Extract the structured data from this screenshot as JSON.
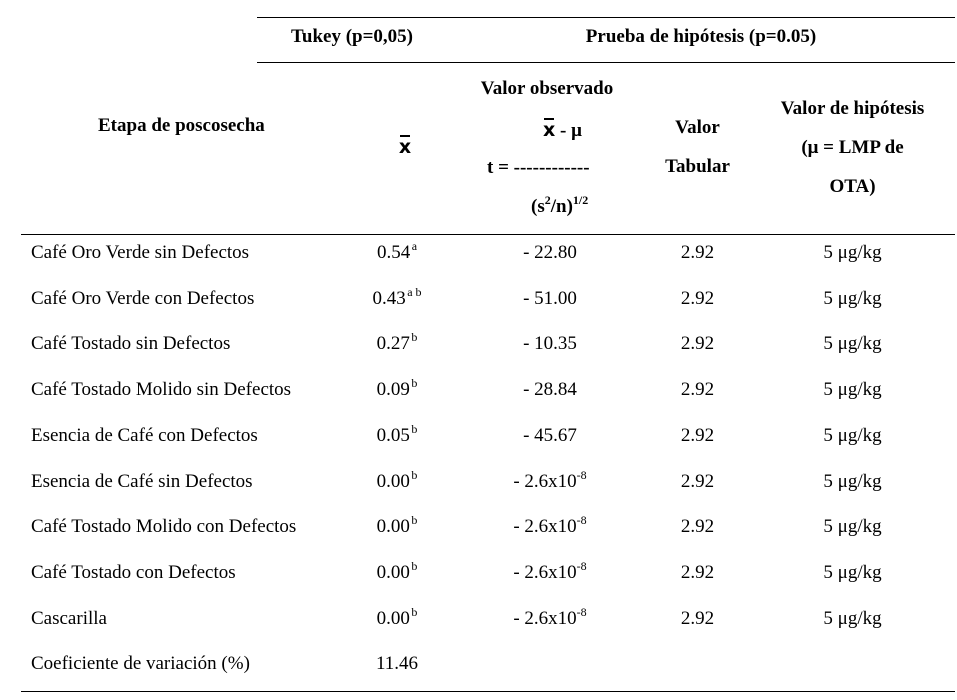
{
  "header": {
    "tukey": "Tukey (p=0,05)",
    "prueba": "Prueba de hipótesis (p=0.05)",
    "etapa": "Etapa de poscosecha",
    "xbar_symbol": "x",
    "valor_observado": "Valor observado",
    "formula_numer_x": "x",
    "formula_numer_rest": " - μ",
    "formula_t": "t = ------------",
    "formula_den_open": "(s",
    "formula_den_exp1": "2",
    "formula_den_mid": "/n)",
    "formula_den_exp2": "1/2",
    "valor_tabular_1": "Valor",
    "valor_tabular_2": "Tabular",
    "valor_hip_1": "Valor de hipótesis",
    "valor_hip_2": "(μ = LMP de",
    "valor_hip_3": "OTA)"
  },
  "rows": [
    {
      "etapa": "Café Oro Verde sin Defectos",
      "mean": "0.54",
      "sup": "a",
      "t": "- 22.80",
      "t_exp": "",
      "tabular": "2.92",
      "hip": "5 μg/kg"
    },
    {
      "etapa": "Café Oro Verde con Defectos",
      "mean": "0.43",
      "sup": "a b",
      "t": "- 51.00",
      "t_exp": "",
      "tabular": "2.92",
      "hip": "5 μg/kg"
    },
    {
      "etapa": "Café Tostado sin Defectos",
      "mean": "0.27",
      "sup": "b",
      "t": "- 10.35",
      "t_exp": "",
      "tabular": "2.92",
      "hip": "5 μg/kg"
    },
    {
      "etapa": "Café Tostado Molido sin Defectos",
      "mean": "0.09",
      "sup": "b",
      "t": "- 28.84",
      "t_exp": "",
      "tabular": "2.92",
      "hip": "5 μg/kg"
    },
    {
      "etapa": "Esencia de Café con Defectos",
      "mean": "0.05",
      "sup": "b",
      "t": "- 45.67",
      "t_exp": "",
      "tabular": "2.92",
      "hip": "5 μg/kg"
    },
    {
      "etapa": "Esencia de Café sin Defectos",
      "mean": "0.00",
      "sup": "b",
      "t": "- 2.6x10",
      "t_exp": "-8",
      "tabular": "2.92",
      "hip": "5 μg/kg"
    },
    {
      "etapa": "Café Tostado Molido con Defectos",
      "mean": "0.00",
      "sup": "b",
      "t": "- 2.6x10",
      "t_exp": "-8",
      "tabular": "2.92",
      "hip": "5 μg/kg"
    },
    {
      "etapa": "Café Tostado con Defectos",
      "mean": "0.00",
      "sup": "b",
      "t": "- 2.6x10",
      "t_exp": "-8",
      "tabular": "2.92",
      "hip": "5 μg/kg"
    },
    {
      "etapa": "Cascarilla",
      "mean": "0.00",
      "sup": "b",
      "t": "- 2.6x10",
      "t_exp": "-8",
      "tabular": "2.92",
      "hip": "5 μg/kg"
    }
  ],
  "footer": {
    "label": "Coeficiente de variación (%)",
    "value": "11.46"
  }
}
